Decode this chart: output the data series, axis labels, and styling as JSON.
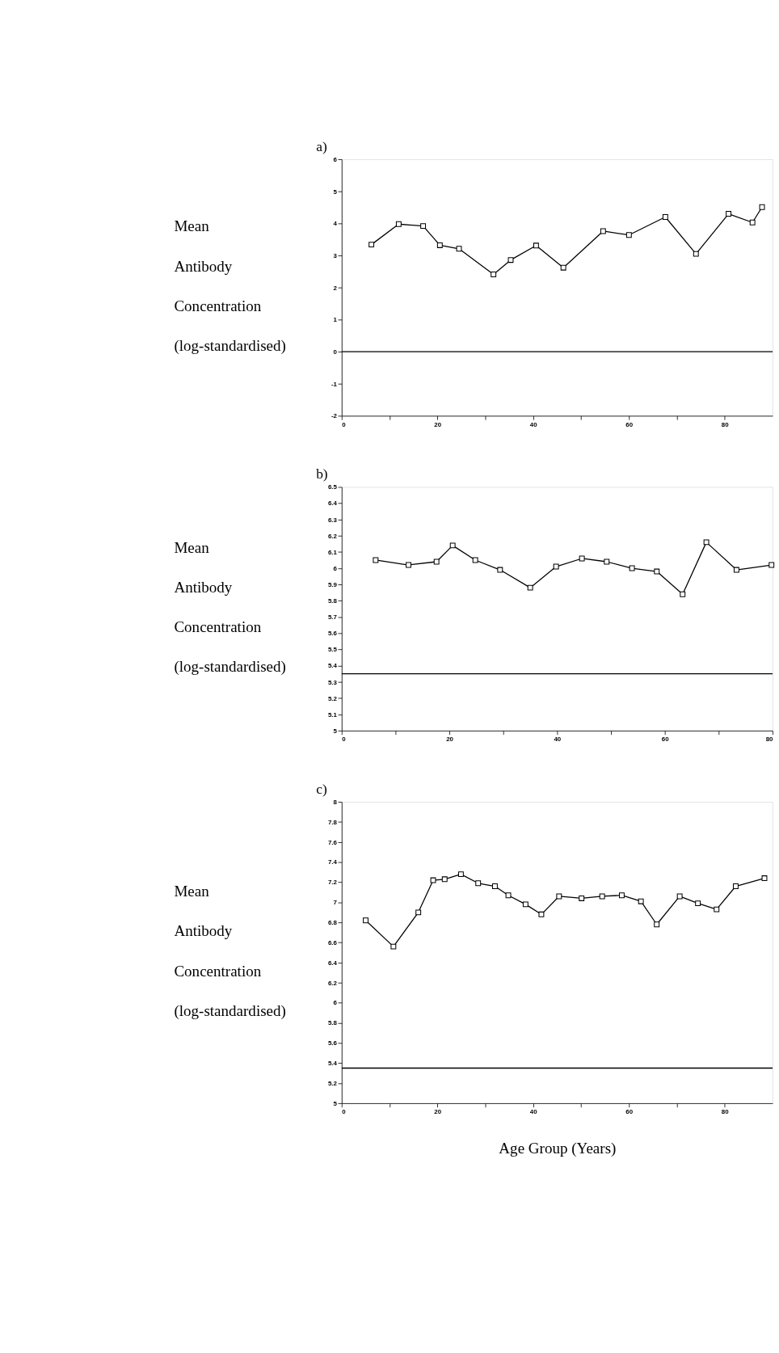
{
  "chart_data": [
    {
      "type": "line",
      "title": "a)",
      "ylabel": "Mean Antibody Concentration (log-standardised)",
      "marker": "square",
      "line_style": "solid",
      "grid": false,
      "legend": false,
      "xlim": [
        0,
        90
      ],
      "xticks": [
        0,
        {
          "value": 10,
          "label": null
        },
        20,
        {
          "value": 30,
          "label": null
        },
        40,
        {
          "value": 50,
          "label": null
        },
        60,
        {
          "value": 70,
          "label": null
        },
        80
      ],
      "ylim": [
        -2,
        6
      ],
      "yticks": [
        -2,
        -1,
        0,
        1,
        2,
        3,
        4,
        5,
        6
      ],
      "ref_lines": [
        {
          "axis": "y",
          "value": 0,
          "color": "#000000"
        }
      ],
      "series": [
        {
          "color": "#000000",
          "x": [
            6.2,
            11.9,
            17.0,
            20.5,
            24.5,
            31.7,
            35.3,
            40.6,
            46.3,
            54.6,
            60.0,
            67.6,
            74.0,
            80.8,
            85.8,
            87.8
          ],
          "values": [
            3.34,
            3.98,
            3.92,
            3.32,
            3.21,
            2.41,
            2.86,
            3.31,
            2.62,
            3.76,
            3.64,
            4.2,
            3.05,
            4.3,
            4.03,
            4.51
          ]
        }
      ]
    },
    {
      "type": "line",
      "title": "b)",
      "ylabel": "Mean Antibody Concentration (log-standardised)",
      "marker": "square",
      "line_style": "solid",
      "grid": false,
      "legend": false,
      "xlim": [
        0,
        80
      ],
      "xticks": [
        0,
        {
          "value": 10,
          "label": null
        },
        20,
        {
          "value": 30,
          "label": null
        },
        40,
        {
          "value": 50,
          "label": null
        },
        60,
        {
          "value": 70,
          "label": null
        },
        80
      ],
      "ylim": [
        5,
        6.5
      ],
      "yticks": [
        5,
        5.1,
        5.2,
        5.3,
        5.4,
        5.5,
        5.6,
        5.7,
        5.8,
        5.9,
        6,
        6.1,
        6.2,
        6.3,
        6.4,
        6.5
      ],
      "ref_lines": [
        {
          "axis": "y",
          "value": 5.35,
          "color": "#000000"
        }
      ],
      "series": [
        {
          "color": "#000000",
          "x": [
            6.3,
            12.4,
            17.6,
            20.6,
            24.8,
            29.4,
            35.0,
            39.8,
            44.6,
            49.2,
            53.9,
            58.5,
            63.3,
            67.7,
            73.3,
            79.8
          ],
          "values": [
            6.05,
            6.02,
            6.04,
            6.14,
            6.05,
            5.99,
            5.88,
            6.01,
            6.06,
            6.04,
            6.0,
            5.98,
            5.84,
            6.16,
            5.99,
            6.02
          ]
        }
      ]
    },
    {
      "type": "line",
      "title": "c)",
      "ylabel": "Mean Antibody Concentration (log-standardised)",
      "xlabel": "Age Group (Years)",
      "marker": "square",
      "line_style": "solid",
      "grid": false,
      "legend": false,
      "xlim": [
        0,
        90
      ],
      "xticks": [
        0,
        {
          "value": 10,
          "label": null
        },
        20,
        {
          "value": 30,
          "label": null
        },
        40,
        {
          "value": 50,
          "label": null
        },
        60,
        {
          "value": 70,
          "label": null
        },
        80
      ],
      "ylim": [
        5,
        8
      ],
      "yticks": [
        5,
        5.2,
        5.4,
        5.6,
        5.8,
        6,
        6.2,
        6.4,
        6.6,
        6.8,
        7,
        7.2,
        7.4,
        7.6,
        7.8,
        8
      ],
      "ref_lines": [
        {
          "axis": "y",
          "value": 5.35,
          "color": "#000000"
        }
      ],
      "series": [
        {
          "color": "#000000",
          "x": [
            5.0,
            10.8,
            16.0,
            19.1,
            21.5,
            24.9,
            28.5,
            32.0,
            34.8,
            38.4,
            41.7,
            45.4,
            50.1,
            54.4,
            58.5,
            62.5,
            65.8,
            70.6,
            74.4,
            78.3,
            82.3,
            88.3
          ],
          "values": [
            6.82,
            6.56,
            6.9,
            7.22,
            7.23,
            7.28,
            7.19,
            7.16,
            7.07,
            6.98,
            6.88,
            7.06,
            7.04,
            7.06,
            7.07,
            7.01,
            6.78,
            7.06,
            6.99,
            6.93,
            7.16,
            7.24
          ]
        }
      ]
    }
  ]
}
